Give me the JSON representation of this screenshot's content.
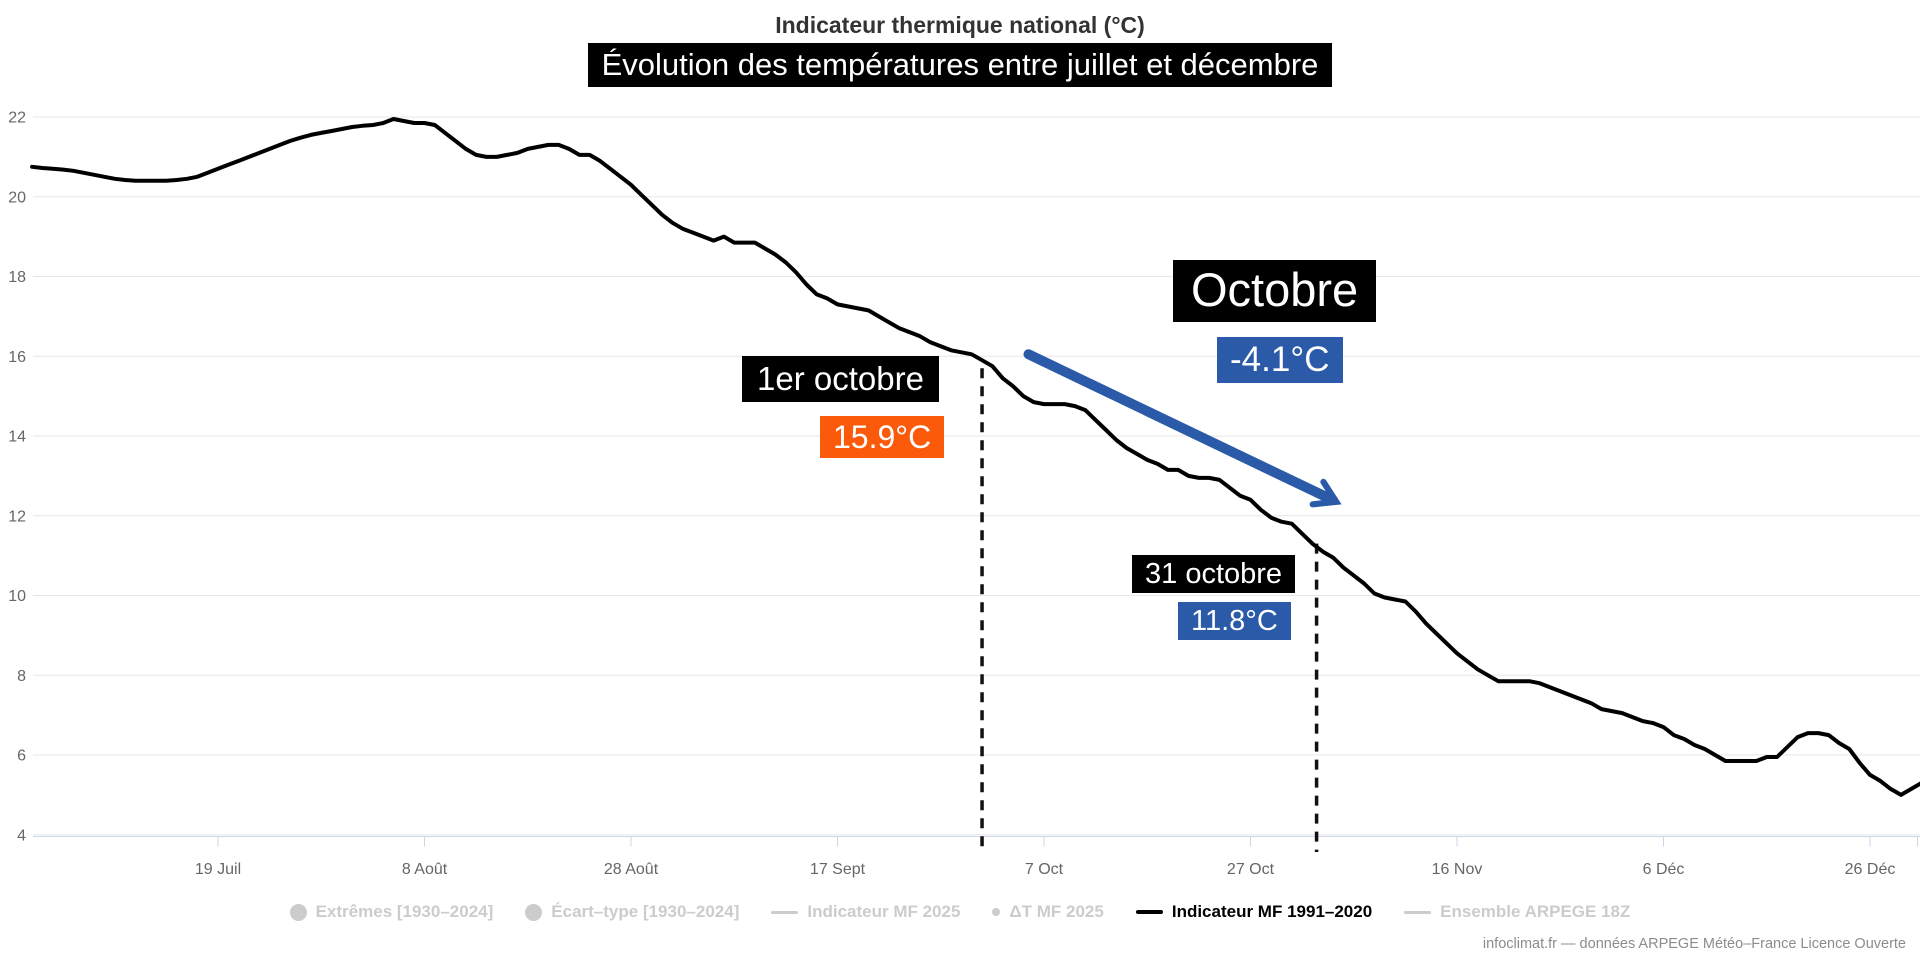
{
  "credit": "infoclimat.fr — données ARPEGE Météo–France Licence Ouverte",
  "colors": {
    "orange": "#fa5a0a",
    "blue": "#2a5aa8",
    "series_line": "#000000",
    "grid": "#e7e7e7",
    "axis": "#ccd6eb",
    "axis_label": "#666666",
    "title": "#333333",
    "legend_disabled": "#cccccc",
    "credit": "#8c8c8c",
    "dashed_line": "#111111"
  },
  "legend": [
    {
      "slug": "extremes-1930-2024",
      "label": "Extrêmes [1930–2024]",
      "marker": "circle",
      "color": "#cccccc",
      "text_color": "#cccccc"
    },
    {
      "slug": "ecart-type-1930-2024",
      "label": "Écart–type [1930–2024]",
      "marker": "circle",
      "color": "#cccccc",
      "text_color": "#cccccc"
    },
    {
      "slug": "indicateur-mf-2025",
      "label": "Indicateur MF 2025",
      "marker": "line",
      "color": "#cccccc",
      "text_color": "#cccccc"
    },
    {
      "slug": "delta-t-mf-2025",
      "label": "ΔT MF 2025",
      "marker": "dot",
      "color": "#cccccc",
      "text_color": "#cccccc"
    },
    {
      "slug": "indicateur-mf-1991-2020",
      "label": "Indicateur MF 1991–2020",
      "marker": "line-bold",
      "color": "#000000",
      "text_color": "#000000"
    },
    {
      "slug": "ensemble-arpege-18z",
      "label": "Ensemble ARPEGE 18Z",
      "marker": "line",
      "color": "#cccccc",
      "text_color": "#cccccc"
    }
  ],
  "chart_data": {
    "type": "line",
    "title": "Indicateur thermique national (°C)",
    "subtitle": "Évolution des températures entre juillet et décembre",
    "xlabel": "",
    "ylabel": "",
    "x_unit": "jours depuis le 1 juillet",
    "ylim": [
      4,
      22
    ],
    "grid": "horizontal",
    "legend_position": "bottom",
    "y_ticks": [
      4,
      6,
      8,
      10,
      12,
      14,
      16,
      18,
      20,
      22
    ],
    "x_ticks": [
      {
        "label": "19 Juil",
        "day": 18
      },
      {
        "label": "8 Août",
        "day": 38
      },
      {
        "label": "28 Août",
        "day": 58
      },
      {
        "label": "17 Sept",
        "day": 78
      },
      {
        "label": "7 Oct",
        "day": 98
      },
      {
        "label": "27 Oct",
        "day": 118
      },
      {
        "label": "16 Nov",
        "day": 138
      },
      {
        "label": "6 Déc",
        "day": 158
      },
      {
        "label": "26 Déc",
        "day": 178
      },
      {
        "label": "",
        "day": 182.6
      }
    ],
    "series": [
      {
        "name": "Indicateur MF 1991–2020",
        "color": "#000000",
        "points": [
          [
            0,
            20.75
          ],
          [
            1,
            20.72
          ],
          [
            2,
            20.7
          ],
          [
            3,
            20.68
          ],
          [
            4,
            20.65
          ],
          [
            5,
            20.6
          ],
          [
            6,
            20.55
          ],
          [
            7,
            20.5
          ],
          [
            8,
            20.45
          ],
          [
            9,
            20.42
          ],
          [
            10,
            20.4
          ],
          [
            11,
            20.4
          ],
          [
            12,
            20.4
          ],
          [
            13,
            20.4
          ],
          [
            14,
            20.42
          ],
          [
            15,
            20.45
          ],
          [
            16,
            20.5
          ],
          [
            17,
            20.6
          ],
          [
            18,
            20.7
          ],
          [
            19,
            20.8
          ],
          [
            20,
            20.9
          ],
          [
            21,
            21.0
          ],
          [
            22,
            21.1
          ],
          [
            23,
            21.2
          ],
          [
            24,
            21.3
          ],
          [
            25,
            21.4
          ],
          [
            26,
            21.48
          ],
          [
            27,
            21.55
          ],
          [
            28,
            21.6
          ],
          [
            29,
            21.65
          ],
          [
            30,
            21.7
          ],
          [
            31,
            21.75
          ],
          [
            32,
            21.78
          ],
          [
            33,
            21.8
          ],
          [
            34,
            21.85
          ],
          [
            35,
            21.95
          ],
          [
            36,
            21.9
          ],
          [
            37,
            21.85
          ],
          [
            38,
            21.85
          ],
          [
            39,
            21.8
          ],
          [
            40,
            21.6
          ],
          [
            41,
            21.4
          ],
          [
            42,
            21.2
          ],
          [
            43,
            21.05
          ],
          [
            44,
            21.0
          ],
          [
            45,
            21.0
          ],
          [
            46,
            21.05
          ],
          [
            47,
            21.1
          ],
          [
            48,
            21.2
          ],
          [
            49,
            21.25
          ],
          [
            50,
            21.3
          ],
          [
            51,
            21.3
          ],
          [
            52,
            21.2
          ],
          [
            53,
            21.05
          ],
          [
            54,
            21.05
          ],
          [
            55,
            20.9
          ],
          [
            56,
            20.7
          ],
          [
            57,
            20.5
          ],
          [
            58,
            20.3
          ],
          [
            59,
            20.05
          ],
          [
            60,
            19.8
          ],
          [
            61,
            19.55
          ],
          [
            62,
            19.35
          ],
          [
            63,
            19.2
          ],
          [
            64,
            19.1
          ],
          [
            65,
            19.0
          ],
          [
            66,
            18.9
          ],
          [
            67,
            19.0
          ],
          [
            68,
            18.85
          ],
          [
            69,
            18.85
          ],
          [
            70,
            18.85
          ],
          [
            71,
            18.7
          ],
          [
            72,
            18.55
          ],
          [
            73,
            18.35
          ],
          [
            74,
            18.1
          ],
          [
            75,
            17.8
          ],
          [
            76,
            17.55
          ],
          [
            77,
            17.45
          ],
          [
            78,
            17.3
          ],
          [
            79,
            17.25
          ],
          [
            80,
            17.2
          ],
          [
            81,
            17.15
          ],
          [
            82,
            17.0
          ],
          [
            83,
            16.85
          ],
          [
            84,
            16.7
          ],
          [
            85,
            16.6
          ],
          [
            86,
            16.5
          ],
          [
            87,
            16.35
          ],
          [
            88,
            16.25
          ],
          [
            89,
            16.15
          ],
          [
            90,
            16.1
          ],
          [
            91,
            16.05
          ],
          [
            92,
            15.9
          ],
          [
            93,
            15.75
          ],
          [
            94,
            15.45
          ],
          [
            95,
            15.25
          ],
          [
            96,
            15.0
          ],
          [
            97,
            14.85
          ],
          [
            98,
            14.8
          ],
          [
            99,
            14.8
          ],
          [
            100,
            14.8
          ],
          [
            101,
            14.75
          ],
          [
            102,
            14.65
          ],
          [
            103,
            14.4
          ],
          [
            104,
            14.15
          ],
          [
            105,
            13.9
          ],
          [
            106,
            13.7
          ],
          [
            107,
            13.55
          ],
          [
            108,
            13.4
          ],
          [
            109,
            13.3
          ],
          [
            110,
            13.15
          ],
          [
            111,
            13.15
          ],
          [
            112,
            13.0
          ],
          [
            113,
            12.95
          ],
          [
            114,
            12.95
          ],
          [
            115,
            12.9
          ],
          [
            116,
            12.7
          ],
          [
            117,
            12.5
          ],
          [
            118,
            12.4
          ],
          [
            119,
            12.15
          ],
          [
            120,
            11.95
          ],
          [
            121,
            11.85
          ],
          [
            122,
            11.8
          ],
          [
            123,
            11.55
          ],
          [
            124,
            11.3
          ],
          [
            125,
            11.1
          ],
          [
            126,
            10.95
          ],
          [
            127,
            10.7
          ],
          [
            128,
            10.5
          ],
          [
            129,
            10.3
          ],
          [
            130,
            10.05
          ],
          [
            131,
            9.95
          ],
          [
            132,
            9.9
          ],
          [
            133,
            9.85
          ],
          [
            134,
            9.6
          ],
          [
            135,
            9.3
          ],
          [
            136,
            9.05
          ],
          [
            137,
            8.8
          ],
          [
            138,
            8.55
          ],
          [
            139,
            8.35
          ],
          [
            140,
            8.15
          ],
          [
            141,
            8.0
          ],
          [
            142,
            7.85
          ],
          [
            143,
            7.85
          ],
          [
            144,
            7.85
          ],
          [
            145,
            7.85
          ],
          [
            146,
            7.8
          ],
          [
            147,
            7.7
          ],
          [
            148,
            7.6
          ],
          [
            149,
            7.5
          ],
          [
            150,
            7.4
          ],
          [
            151,
            7.3
          ],
          [
            152,
            7.15
          ],
          [
            153,
            7.1
          ],
          [
            154,
            7.05
          ],
          [
            155,
            6.95
          ],
          [
            156,
            6.85
          ],
          [
            157,
            6.8
          ],
          [
            158,
            6.7
          ],
          [
            159,
            6.5
          ],
          [
            160,
            6.4
          ],
          [
            161,
            6.25
          ],
          [
            162,
            6.15
          ],
          [
            163,
            6.0
          ],
          [
            164,
            5.85
          ],
          [
            165,
            5.85
          ],
          [
            166,
            5.85
          ],
          [
            167,
            5.85
          ],
          [
            168,
            5.95
          ],
          [
            169,
            5.95
          ],
          [
            170,
            6.2
          ],
          [
            171,
            6.45
          ],
          [
            172,
            6.55
          ],
          [
            173,
            6.55
          ],
          [
            174,
            6.5
          ],
          [
            175,
            6.3
          ],
          [
            176,
            6.15
          ],
          [
            177,
            5.8
          ],
          [
            178,
            5.5
          ],
          [
            179,
            5.35
          ],
          [
            180,
            5.15
          ],
          [
            181,
            5.0
          ],
          [
            182,
            5.15
          ],
          [
            183,
            5.3
          ]
        ]
      }
    ],
    "annotations": {
      "oct1": {
        "date_label": "1er octobre",
        "temp_label": "15.9°C",
        "day": 92,
        "temp": 15.9
      },
      "month": {
        "label": "Octobre",
        "delta_label": "-4.1°C",
        "delta": -4.1
      },
      "oct31": {
        "date_label": "31 octobre",
        "temp_label": "11.8°C",
        "day": 122,
        "temp": 11.8
      },
      "dashed_lines": [
        {
          "day": 92,
          "top_temp": 15.7
        },
        {
          "day": 124.4,
          "top_temp": 11.3
        }
      ],
      "arrow": {
        "from_day": 96.5,
        "from_temp": 16.05,
        "to_day": 125.9,
        "to_temp": 12.4
      }
    }
  }
}
